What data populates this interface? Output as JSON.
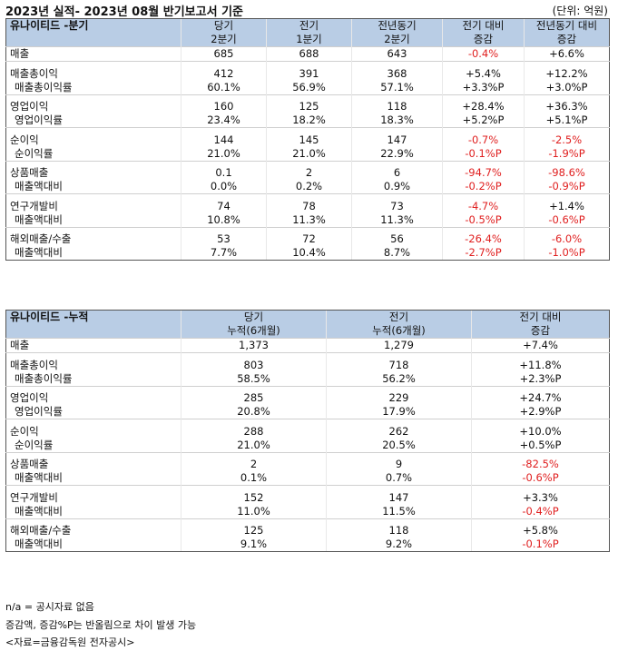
{
  "title": "2023년 실적- 2023년 08월 반기보고서 기준",
  "unit": "(단위: 억원)",
  "quarterly": {
    "header": {
      "name": "유나이티드 -분기",
      "cols": [
        [
          "당기",
          "2분기"
        ],
        [
          "전기",
          "1분기"
        ],
        [
          "전년동기",
          "2분기"
        ],
        [
          "전기 대비",
          "증감"
        ],
        [
          "전년동기 대비",
          "증감"
        ]
      ]
    },
    "rows": [
      {
        "label": "매출",
        "v": [
          "685",
          "688",
          "643",
          "-0.4%",
          "+6.6%"
        ]
      },
      {
        "label": "매출총이익",
        "v": [
          "412",
          "391",
          "368",
          "+5.4%",
          "+12.2%"
        ]
      },
      {
        "label": "매출총이익률",
        "v": [
          "60.1%",
          "56.9%",
          "57.1%",
          "+3.3%P",
          "+3.0%P"
        ]
      },
      {
        "label": "영업이익",
        "v": [
          "160",
          "125",
          "118",
          "+28.4%",
          "+36.3%"
        ]
      },
      {
        "label": "영업이익률",
        "v": [
          "23.4%",
          "18.2%",
          "18.3%",
          "+5.2%P",
          "+5.1%P"
        ]
      },
      {
        "label": "순이익",
        "v": [
          "144",
          "145",
          "147",
          "-0.7%",
          "-2.5%"
        ]
      },
      {
        "label": "순이익률",
        "v": [
          "21.0%",
          "21.0%",
          "22.9%",
          "-0.1%P",
          "-1.9%P"
        ]
      },
      {
        "label": "상품매출",
        "v": [
          "0.1",
          "2",
          "6",
          "-94.7%",
          "-98.6%"
        ]
      },
      {
        "label": "매출액대비",
        "v": [
          "0.0%",
          "0.2%",
          "0.9%",
          "-0.2%P",
          "-0.9%P"
        ]
      },
      {
        "label": "연구개발비",
        "v": [
          "74",
          "78",
          "73",
          "-4.7%",
          "+1.4%"
        ]
      },
      {
        "label": "매출액대비",
        "v": [
          "10.8%",
          "11.3%",
          "11.3%",
          "-0.5%P",
          "-0.6%P"
        ]
      },
      {
        "label": "해외매출/수출",
        "v": [
          "53",
          "72",
          "56",
          "-26.4%",
          "-6.0%"
        ]
      },
      {
        "label": "매출액대비",
        "v": [
          "7.7%",
          "10.4%",
          "8.7%",
          "-2.7%P",
          "-1.0%P"
        ]
      }
    ]
  },
  "cumulative": {
    "header": {
      "name": "유나이티드 -누적",
      "cols": [
        [
          "당기",
          "누적(6개월)"
        ],
        [
          "전기",
          "누적(6개월)"
        ],
        [
          "전기 대비",
          "증감"
        ]
      ]
    },
    "rows": [
      {
        "label": "매출",
        "v": [
          "1,373",
          "1,279",
          "+7.4%"
        ]
      },
      {
        "label": "매출총이익",
        "v": [
          "803",
          "718",
          "+11.8%"
        ]
      },
      {
        "label": "매출총이익률",
        "v": [
          "58.5%",
          "56.2%",
          "+2.3%P"
        ]
      },
      {
        "label": "영업이익",
        "v": [
          "285",
          "229",
          "+24.7%"
        ]
      },
      {
        "label": "영업이익률",
        "v": [
          "20.8%",
          "17.9%",
          "+2.9%P"
        ]
      },
      {
        "label": "순이익",
        "v": [
          "288",
          "262",
          "+10.0%"
        ]
      },
      {
        "label": "순이익률",
        "v": [
          "21.0%",
          "20.5%",
          "+0.5%P"
        ]
      },
      {
        "label": "상품매출",
        "v": [
          "2",
          "9",
          "-82.5%"
        ]
      },
      {
        "label": "매출액대비",
        "v": [
          "0.1%",
          "0.7%",
          "-0.6%P"
        ]
      },
      {
        "label": "연구개발비",
        "v": [
          "152",
          "147",
          "+3.3%"
        ]
      },
      {
        "label": "매출액대비",
        "v": [
          "11.0%",
          "11.5%",
          "-0.4%P"
        ]
      },
      {
        "label": "해외매출/수출",
        "v": [
          "125",
          "118",
          "+5.8%"
        ]
      },
      {
        "label": "매출액대비",
        "v": [
          "9.1%",
          "9.2%",
          "-0.1%P"
        ]
      }
    ]
  },
  "footnotes": [
    "n/a = 공시자료 없음",
    "증감액, 증감%P는 반올림으로 차이 발생 가능",
    "<자료=금융감독원 전자공시>"
  ],
  "colors": {
    "header_bg": "#b9cde5",
    "negative": "#e02020"
  }
}
